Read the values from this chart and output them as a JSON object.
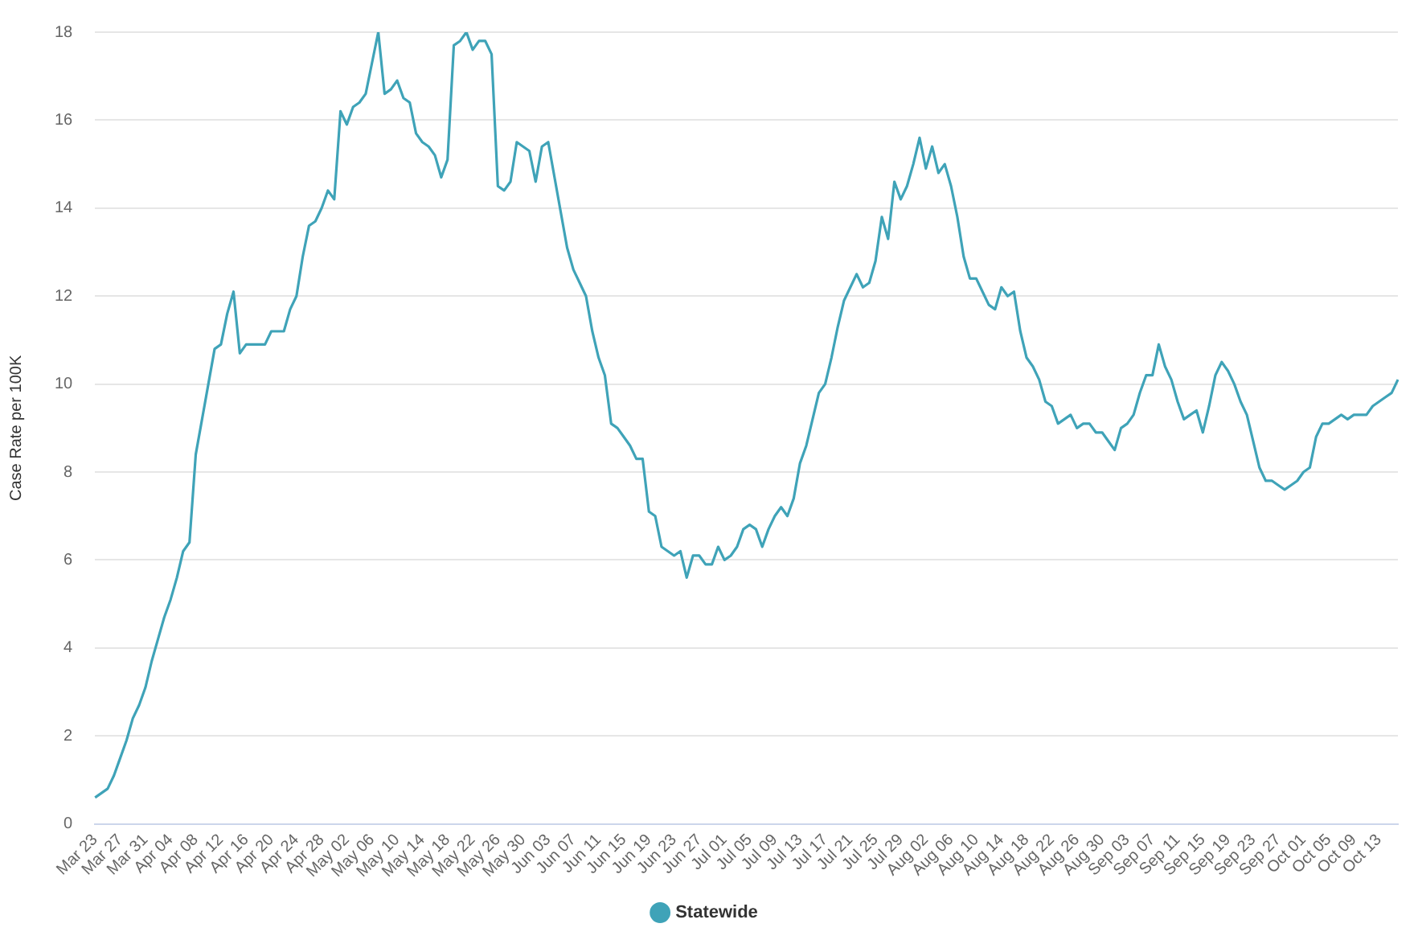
{
  "chart_data": {
    "type": "line",
    "ylabel": "Case Rate per 100K",
    "categories": [
      "Mar 23",
      null,
      null,
      null,
      "Mar 27",
      null,
      null,
      null,
      "Mar 31",
      null,
      null,
      null,
      "Apr 04",
      null,
      null,
      null,
      "Apr 08",
      null,
      null,
      null,
      "Apr 12",
      null,
      null,
      null,
      "Apr 16",
      null,
      null,
      null,
      "Apr 20",
      null,
      null,
      null,
      "Apr 24",
      null,
      null,
      null,
      "Apr 28",
      null,
      null,
      null,
      "May 02",
      null,
      null,
      null,
      "May 06",
      null,
      null,
      null,
      "May 10",
      null,
      null,
      null,
      "May 14",
      null,
      null,
      null,
      "May 18",
      null,
      null,
      null,
      "May 22",
      null,
      null,
      null,
      "May 26",
      null,
      null,
      null,
      "May 30",
      null,
      null,
      null,
      "Jun 03",
      null,
      null,
      null,
      "Jun 07",
      null,
      null,
      null,
      "Jun 11",
      null,
      null,
      null,
      "Jun 15",
      null,
      null,
      null,
      "Jun 19",
      null,
      null,
      null,
      "Jun 23",
      null,
      null,
      null,
      "Jun 27",
      null,
      null,
      null,
      "Jul 01",
      null,
      null,
      null,
      "Jul 05",
      null,
      null,
      null,
      "Jul 09",
      null,
      null,
      null,
      "Jul 13",
      null,
      null,
      null,
      "Jul 17",
      null,
      null,
      null,
      "Jul 21",
      null,
      null,
      null,
      "Jul 25",
      null,
      null,
      null,
      "Jul 29",
      null,
      null,
      null,
      "Aug 02",
      null,
      null,
      null,
      "Aug 06",
      null,
      null,
      null,
      "Aug 10",
      null,
      null,
      null,
      "Aug 14",
      null,
      null,
      null,
      "Aug 18",
      null,
      null,
      null,
      "Aug 22",
      null,
      null,
      null,
      "Aug 26",
      null,
      null,
      null,
      "Aug 30",
      null,
      null,
      null,
      "Sep 03",
      null,
      null,
      null,
      "Sep 07",
      null,
      null,
      null,
      "Sep 11",
      null,
      null,
      null,
      "Sep 15",
      null,
      null,
      null,
      "Sep 19",
      null,
      null,
      null,
      "Sep 23",
      null,
      null,
      null,
      "Sep 27",
      null,
      null,
      null,
      "Oct 01",
      null,
      null,
      null,
      "Oct 05",
      null,
      null,
      null,
      "Oct 09",
      null,
      null,
      null,
      "Oct 13",
      null,
      null,
      null
    ],
    "series": [
      {
        "name": "Statewide",
        "color": "#3fa3b8",
        "values": [
          0.6,
          0.7,
          0.8,
          1.1,
          1.5,
          1.9,
          2.4,
          2.7,
          3.1,
          3.7,
          4.2,
          4.7,
          5.1,
          5.6,
          6.2,
          6.4,
          8.4,
          9.2,
          10.0,
          10.8,
          10.9,
          11.6,
          12.1,
          10.7,
          10.9,
          10.9,
          10.9,
          10.9,
          11.2,
          11.2,
          11.2,
          11.7,
          12.0,
          12.9,
          13.6,
          13.7,
          14.0,
          14.4,
          14.2,
          16.2,
          15.9,
          16.3,
          16.4,
          16.6,
          17.3,
          18.0,
          16.6,
          16.7,
          16.9,
          16.5,
          16.4,
          15.7,
          15.5,
          15.4,
          15.2,
          14.7,
          15.1,
          17.7,
          17.8,
          18.0,
          17.6,
          17.8,
          17.8,
          17.5,
          14.5,
          14.4,
          14.6,
          15.5,
          15.4,
          15.3,
          14.6,
          15.4,
          15.5,
          14.7,
          13.9,
          13.1,
          12.6,
          12.3,
          12.0,
          11.2,
          10.6,
          10.2,
          9.1,
          9.0,
          8.8,
          8.6,
          8.3,
          8.3,
          7.1,
          7.0,
          6.3,
          6.2,
          6.1,
          6.2,
          5.6,
          6.1,
          6.1,
          5.9,
          5.9,
          6.3,
          6.0,
          6.1,
          6.3,
          6.7,
          6.8,
          6.7,
          6.3,
          6.7,
          7.0,
          7.2,
          7.0,
          7.4,
          8.2,
          8.6,
          9.2,
          9.8,
          10.0,
          10.6,
          11.3,
          11.9,
          12.2,
          12.5,
          12.2,
          12.3,
          12.8,
          13.8,
          13.3,
          14.6,
          14.2,
          14.5,
          15.0,
          15.6,
          14.9,
          15.4,
          14.8,
          15.0,
          14.5,
          13.8,
          12.9,
          12.4,
          12.4,
          12.1,
          11.8,
          11.7,
          12.2,
          12.0,
          12.1,
          11.2,
          10.6,
          10.4,
          10.1,
          9.6,
          9.5,
          9.1,
          9.2,
          9.3,
          9.0,
          9.1,
          9.1,
          8.9,
          8.9,
          8.7,
          8.5,
          9.0,
          9.1,
          9.3,
          9.8,
          10.2,
          10.2,
          10.9,
          10.4,
          10.1,
          9.6,
          9.2,
          9.3,
          9.4,
          8.9,
          9.5,
          10.2,
          10.5,
          10.3,
          10.0,
          9.6,
          9.3,
          8.7,
          8.1,
          7.8,
          7.8,
          7.7,
          7.6,
          7.7,
          7.8,
          8.0,
          8.1,
          8.8,
          9.1,
          9.1,
          9.2,
          9.3,
          9.2,
          9.3,
          9.3,
          9.3,
          9.5,
          9.6,
          9.7,
          9.8,
          10.1
        ]
      }
    ],
    "ylim": [
      0,
      18
    ],
    "yticks": [
      0,
      2,
      4,
      6,
      8,
      10,
      12,
      14,
      16,
      18
    ],
    "grid": "y",
    "legend": "bottom"
  }
}
